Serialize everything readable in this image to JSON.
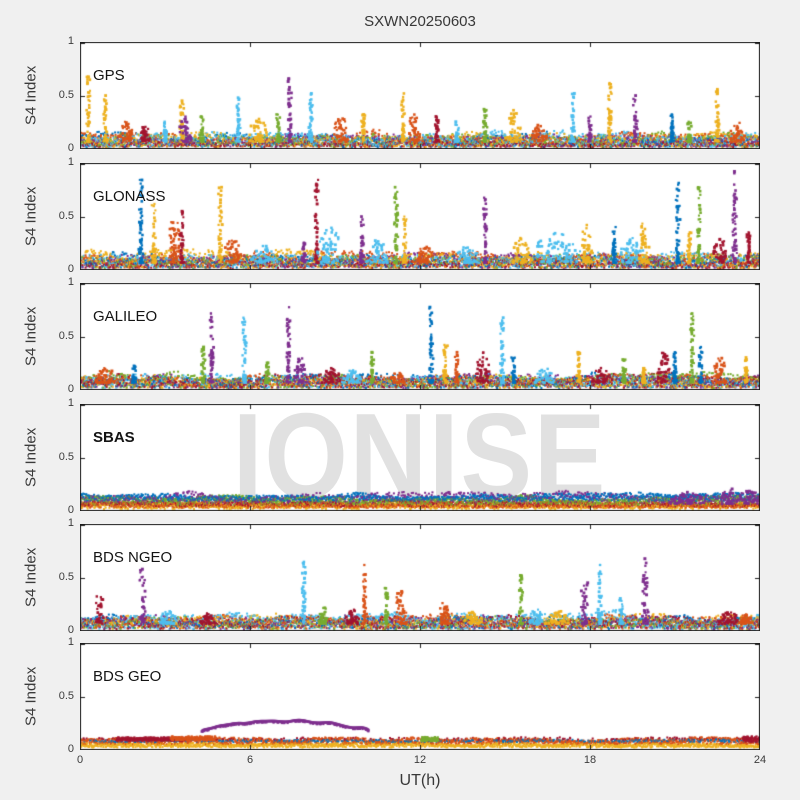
{
  "chart_data": {
    "type": "scatter",
    "title": "SXWN20250603",
    "xlabel": "UT(h)",
    "ylabel": "S4 Index",
    "watermark": "IONISE",
    "xlim": [
      0,
      24
    ],
    "ylim": [
      0,
      1
    ],
    "xtick_labels": [
      "0",
      "6",
      "12",
      "18",
      "24"
    ],
    "ytick_labels": [
      "1",
      "0.5",
      "0"
    ],
    "grid": false,
    "palette": {
      "blue": "#0072BD",
      "orange": "#D95319",
      "yellow": "#EDB120",
      "purple": "#7E2F8E",
      "green": "#77AC30",
      "cyan": "#4DBEEE",
      "darkred": "#A2142F"
    },
    "frame_color": "#1c1c1c",
    "background": "#f0f0f0",
    "panels": [
      {
        "label": "GPS",
        "bold": false,
        "layers": [
          [
            "darkred",
            0.01,
            0.06,
            0.55
          ],
          [
            "blue",
            0.01,
            0.12,
            0.5
          ],
          [
            "orange",
            0.01,
            0.13,
            0.6
          ],
          [
            "yellow",
            0.01,
            0.13,
            0.6
          ],
          [
            "purple",
            0.01,
            0.12,
            0.4
          ],
          [
            "green",
            0.01,
            0.12,
            0.45
          ],
          [
            "cyan",
            0.01,
            0.13,
            0.65
          ]
        ],
        "spikes": [
          [
            0.3,
            0.68,
            "yellow"
          ],
          [
            0.9,
            0.5,
            "yellow"
          ],
          [
            1.7,
            0.28,
            "orange",
            0.3
          ],
          [
            2.3,
            0.22,
            "darkred",
            0.2
          ],
          [
            3.0,
            0.25,
            "cyan"
          ],
          [
            3.6,
            0.45,
            "yellow"
          ],
          [
            3.7,
            0.3,
            "purple",
            0.25
          ],
          [
            4.3,
            0.3,
            "green"
          ],
          [
            5.6,
            0.48,
            "cyan"
          ],
          [
            6.3,
            0.28,
            "yellow",
            0.4
          ],
          [
            7.0,
            0.32,
            "green"
          ],
          [
            7.4,
            0.66,
            "purple"
          ],
          [
            8.15,
            0.52,
            "cyan"
          ],
          [
            9.2,
            0.3,
            "orange",
            0.3
          ],
          [
            10.0,
            0.32,
            "yellow"
          ],
          [
            11.4,
            0.52,
            "yellow"
          ],
          [
            11.8,
            0.32,
            "orange",
            0.3
          ],
          [
            12.6,
            0.3,
            "darkred"
          ],
          [
            13.3,
            0.25,
            "cyan"
          ],
          [
            14.3,
            0.37,
            "green"
          ],
          [
            15.3,
            0.36,
            "yellow",
            0.3
          ],
          [
            16.2,
            0.22,
            "orange",
            0.3
          ],
          [
            17.4,
            0.52,
            "cyan"
          ],
          [
            18.0,
            0.3,
            "purple"
          ],
          [
            18.7,
            0.62,
            "yellow"
          ],
          [
            19.6,
            0.5,
            "purple"
          ],
          [
            20.9,
            0.32,
            "blue"
          ],
          [
            21.5,
            0.25,
            "green"
          ],
          [
            22.5,
            0.56,
            "yellow"
          ],
          [
            23.2,
            0.25,
            "orange",
            0.3
          ]
        ],
        "arcs": []
      },
      {
        "label": "GLONASS",
        "bold": false,
        "layers": [
          [
            "darkred",
            0.01,
            0.07,
            0.5
          ],
          [
            "orange",
            0.01,
            0.13,
            0.7
          ],
          [
            "yellow",
            0.01,
            0.14,
            0.8
          ],
          [
            "blue",
            0.01,
            0.12,
            0.45
          ],
          [
            "cyan",
            0.01,
            0.13,
            0.5
          ],
          [
            "purple",
            0.01,
            0.12,
            0.4
          ],
          [
            "green",
            0.01,
            0.11,
            0.35
          ]
        ],
        "spikes": [
          [
            2.15,
            0.85,
            "blue"
          ],
          [
            2.6,
            0.62,
            "yellow"
          ],
          [
            3.35,
            0.5,
            "orange",
            0.3
          ],
          [
            3.6,
            0.55,
            "darkred"
          ],
          [
            4.95,
            0.78,
            "yellow"
          ],
          [
            5.4,
            0.28,
            "orange",
            0.4
          ],
          [
            6.5,
            0.22,
            "cyan",
            0.5
          ],
          [
            7.9,
            0.25,
            "purple"
          ],
          [
            8.35,
            0.85,
            "darkred"
          ],
          [
            8.8,
            0.4,
            "cyan",
            0.5
          ],
          [
            9.95,
            0.5,
            "purple"
          ],
          [
            10.5,
            0.28,
            "cyan",
            0.4
          ],
          [
            11.15,
            0.78,
            "green"
          ],
          [
            11.45,
            0.5,
            "yellow"
          ],
          [
            12.2,
            0.22,
            "orange",
            0.4
          ],
          [
            13.7,
            0.22,
            "cyan",
            0.5
          ],
          [
            14.3,
            0.68,
            "purple"
          ],
          [
            15.6,
            0.3,
            "yellow",
            0.4
          ],
          [
            16.8,
            0.35,
            "cyan",
            0.9
          ],
          [
            17.9,
            0.42,
            "yellow",
            0.3
          ],
          [
            18.85,
            0.4,
            "blue"
          ],
          [
            19.5,
            0.3,
            "cyan",
            0.5
          ],
          [
            19.9,
            0.45,
            "yellow",
            0.2
          ],
          [
            21.1,
            0.82,
            "blue"
          ],
          [
            21.5,
            0.35,
            "yellow"
          ],
          [
            21.85,
            0.78,
            "green"
          ],
          [
            22.6,
            0.3,
            "darkred",
            0.3
          ],
          [
            23.1,
            0.93,
            "purple"
          ],
          [
            23.6,
            0.35,
            "darkred"
          ]
        ],
        "arcs": []
      },
      {
        "label": "GALILEO",
        "bold": false,
        "layers": [
          [
            "green",
            0.01,
            0.13,
            0.7
          ],
          [
            "purple",
            0.01,
            0.12,
            0.5
          ],
          [
            "blue",
            0.01,
            0.12,
            0.5
          ],
          [
            "cyan",
            0.01,
            0.12,
            0.5
          ],
          [
            "orange",
            0.01,
            0.12,
            0.5
          ],
          [
            "yellow",
            0.01,
            0.11,
            0.45
          ],
          [
            "darkred",
            0.01,
            0.12,
            0.45
          ]
        ],
        "spikes": [
          [
            0.9,
            0.2,
            "orange",
            0.5
          ],
          [
            1.9,
            0.22,
            "blue"
          ],
          [
            4.35,
            0.4,
            "green"
          ],
          [
            4.65,
            0.72,
            "purple"
          ],
          [
            5.8,
            0.68,
            "cyan"
          ],
          [
            6.6,
            0.25,
            "green"
          ],
          [
            7.35,
            0.78,
            "purple"
          ],
          [
            7.8,
            0.3,
            "purple",
            0.3
          ],
          [
            8.9,
            0.2,
            "darkred",
            0.4
          ],
          [
            9.6,
            0.18,
            "cyan",
            0.4
          ],
          [
            10.3,
            0.35,
            "green"
          ],
          [
            11.2,
            0.16,
            "orange",
            0.3
          ],
          [
            12.4,
            0.78,
            "blue"
          ],
          [
            12.9,
            0.42,
            "yellow"
          ],
          [
            13.3,
            0.35,
            "orange"
          ],
          [
            14.2,
            0.35,
            "darkred",
            0.3
          ],
          [
            14.9,
            0.68,
            "cyan"
          ],
          [
            15.3,
            0.3,
            "blue"
          ],
          [
            16.4,
            0.2,
            "cyan",
            0.4
          ],
          [
            17.6,
            0.35,
            "yellow"
          ],
          [
            18.4,
            0.2,
            "darkred",
            0.4
          ],
          [
            19.2,
            0.28,
            "green"
          ],
          [
            19.9,
            0.2,
            "yellow"
          ],
          [
            20.6,
            0.35,
            "darkred",
            0.3
          ],
          [
            21.0,
            0.35,
            "blue"
          ],
          [
            21.6,
            0.72,
            "green"
          ],
          [
            21.9,
            0.4,
            "blue"
          ],
          [
            22.6,
            0.3,
            "orange",
            0.3
          ],
          [
            23.5,
            0.3,
            "yellow"
          ]
        ],
        "arcs": []
      },
      {
        "label": "SBAS",
        "bold": true,
        "layers": [
          [
            "yellow",
            0.01,
            0.06,
            0.8
          ],
          [
            "orange",
            0.02,
            0.07,
            0.9
          ],
          [
            "darkred",
            0.03,
            0.08,
            0.5
          ],
          [
            "green",
            0.045,
            0.12,
            1.3
          ],
          [
            "blue",
            0.085,
            0.145,
            0.9
          ],
          [
            "purple",
            0.06,
            0.15,
            0.6
          ]
        ],
        "spikes": [
          [
            21.5,
            0.17,
            "purple",
            0.8
          ],
          [
            22.9,
            0.22,
            "purple",
            0.3
          ],
          [
            23.6,
            0.18,
            "purple",
            0.5
          ]
        ],
        "arcs": []
      },
      {
        "label": "BDS NGEO",
        "bold": false,
        "layers": [
          [
            "cyan",
            0.01,
            0.14,
            0.9
          ],
          [
            "orange",
            0.01,
            0.12,
            0.7
          ],
          [
            "yellow",
            0.01,
            0.12,
            0.6
          ],
          [
            "blue",
            0.01,
            0.11,
            0.4
          ],
          [
            "darkred",
            0.01,
            0.11,
            0.5
          ],
          [
            "purple",
            0.01,
            0.11,
            0.4
          ],
          [
            "green",
            0.01,
            0.1,
            0.35
          ]
        ],
        "spikes": [
          [
            0.7,
            0.32,
            "darkred",
            0.15
          ],
          [
            2.2,
            0.58,
            "purple",
            0.12
          ],
          [
            3.1,
            0.18,
            "cyan",
            0.4
          ],
          [
            4.5,
            0.16,
            "darkred",
            0.3
          ],
          [
            7.9,
            0.65,
            "cyan"
          ],
          [
            8.6,
            0.22,
            "green",
            0.2
          ],
          [
            9.6,
            0.2,
            "darkred",
            0.3
          ],
          [
            10.05,
            0.62,
            "orange"
          ],
          [
            10.8,
            0.4,
            "green"
          ],
          [
            11.3,
            0.38,
            "orange",
            0.25
          ],
          [
            12.85,
            0.28,
            "orange",
            0.2
          ],
          [
            13.9,
            0.18,
            "yellow",
            0.4
          ],
          [
            15.55,
            0.52,
            "green"
          ],
          [
            16.1,
            0.2,
            "cyan",
            0.3
          ],
          [
            16.9,
            0.18,
            "yellow",
            0.5
          ],
          [
            17.8,
            0.45,
            "purple",
            0.15
          ],
          [
            18.35,
            0.62,
            "cyan"
          ],
          [
            19.1,
            0.3,
            "cyan"
          ],
          [
            19.95,
            0.68,
            "purple",
            0.12
          ],
          [
            22.9,
            0.18,
            "darkred",
            0.4
          ],
          [
            23.5,
            0.15,
            "orange",
            0.3
          ]
        ],
        "arcs": []
      },
      {
        "label": "BDS GEO",
        "bold": false,
        "layers": [
          [
            "yellow",
            0.015,
            0.05,
            1.2
          ],
          [
            "orange",
            0.045,
            0.095,
            1.2
          ],
          [
            "blue",
            0.065,
            0.085,
            0.35
          ],
          [
            "darkred",
            0.085,
            0.105,
            0.12
          ]
        ],
        "spikes": [
          [
            2.5,
            0.11,
            "darkred",
            1.2,
            "band",
            0.08
          ],
          [
            4.0,
            0.12,
            "orange",
            0.8,
            "band",
            0.08
          ],
          [
            12.35,
            0.115,
            "green",
            0.3,
            "band",
            0.075
          ],
          [
            23.7,
            0.12,
            "darkred",
            0.3,
            "band",
            0.07
          ]
        ],
        "arcs": [
          {
            "t0": 4.3,
            "t1": 10.2,
            "y0": 0.16,
            "peak": 0.265,
            "color": "purple"
          }
        ]
      }
    ]
  }
}
